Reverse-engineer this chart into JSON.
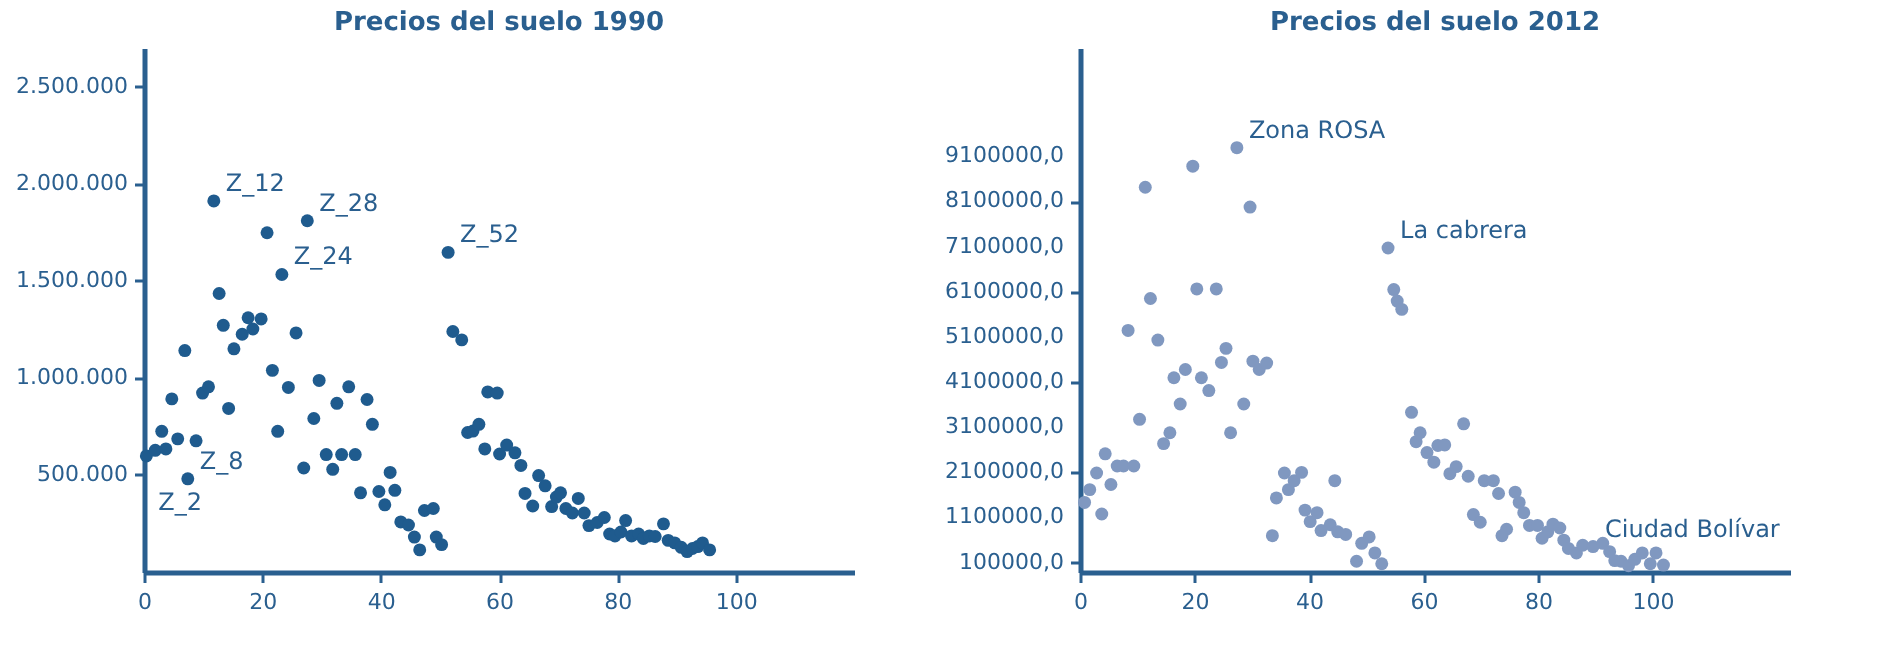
{
  "chart_data": [
    {
      "type": "scatter",
      "title": "Precios del suelo 1990",
      "marker": "circle",
      "grid": false,
      "x": [
        0.4,
        1.9,
        3.0,
        3.7,
        4.7,
        5.7,
        6.9,
        7.4,
        8.8,
        9.9,
        10.9,
        11.8,
        12.7,
        13.4,
        14.3,
        15.2,
        16.6,
        17.6,
        18.4,
        19.8,
        20.8,
        21.7,
        22.6,
        23.3,
        24.4,
        25.7,
        27.0,
        27.6,
        28.7,
        29.6,
        30.8,
        31.9,
        32.6,
        33.4,
        34.6,
        35.7,
        36.6,
        37.7,
        38.6,
        39.7,
        40.7,
        41.6,
        42.4,
        43.4,
        44.7,
        45.7,
        46.6,
        47.4,
        48.9,
        49.4,
        50.3,
        51.4,
        52.2,
        53.7,
        54.7,
        55.6,
        56.6,
        57.6,
        58.1,
        59.7,
        60.1,
        61.3,
        62.7,
        63.7,
        64.4,
        65.7,
        66.7,
        67.8,
        68.9,
        69.7,
        70.4,
        71.3,
        72.4,
        73.4,
        74.4,
        75.2,
        76.6,
        77.8,
        78.7,
        79.6,
        80.6,
        81.4,
        82.4,
        83.6,
        84.4,
        85.4,
        86.4,
        87.8,
        88.6,
        89.7,
        90.8,
        91.8,
        92.7,
        93.6,
        94.4,
        95.6
      ],
      "series": [
        {
          "color": "#1f5b8e",
          "values": [
            598000,
            627000,
            725000,
            634000,
            892000,
            686000,
            1141000,
            480000,
            676000,
            922000,
            954000,
            1912000,
            1435000,
            1271000,
            843000,
            1150000,
            1225000,
            1310000,
            1252000,
            1304000,
            1748000,
            1039000,
            725000,
            1533000,
            951000,
            1232000,
            536000,
            1810000,
            791000,
            987000,
            605000,
            529000,
            869000,
            605000,
            954000,
            605000,
            408000,
            889000,
            761000,
            415000,
            346000,
            513000,
            421000,
            258000,
            242000,
            180000,
            114000,
            317000,
            327000,
            180000,
            141000,
            1647000,
            1239000,
            1196000,
            719000,
            726000,
            761000,
            634000,
            928000,
            922000,
            608000,
            654000,
            614000,
            549000,
            405000,
            340000,
            497000,
            444000,
            337000,
            386000,
            408000,
            327000,
            304000,
            379000,
            304000,
            239000,
            255000,
            281000,
            196000,
            186000,
            206000,
            265000,
            186000,
            196000,
            173000,
            186000,
            183000,
            248000,
            163000,
            150000,
            127000,
            105000,
            121000,
            131000,
            150000,
            114000
          ]
        }
      ],
      "xlim": [
        0,
        120
      ],
      "xticks": [
        0,
        20,
        40,
        60,
        80,
        100
      ],
      "ylim": [
        0,
        2700000
      ],
      "yticks": [
        {
          "value": 500000,
          "label": "500.000"
        },
        {
          "value": 1000000,
          "label": "1.000.000"
        },
        {
          "value": 1500000,
          "label": "1.500.000"
        },
        {
          "value": 2000000,
          "label": "2.000.000"
        },
        {
          "value": 2500000,
          "label": "2.500.000"
        }
      ],
      "annotations": [
        {
          "text": "Z_12",
          "x": 11.8,
          "y": 1912000
        },
        {
          "text": "Z_28",
          "x": 27.6,
          "y": 1810000
        },
        {
          "text": "Z_24",
          "x": 23.3,
          "y": 1533000
        },
        {
          "text": "Z_52",
          "x": 51.4,
          "y": 1647000
        },
        {
          "text": "Z_8",
          "x": 7.4,
          "y": 480000
        },
        {
          "text": "Z_2",
          "x": 0.4,
          "y": 598000
        }
      ]
    },
    {
      "type": "scatter",
      "title": "Precios del suelo 2012",
      "marker": "circle",
      "grid": false,
      "x": [
        0.8,
        1.7,
        2.9,
        3.8,
        4.4,
        5.4,
        6.5,
        7.6,
        8.4,
        9.4,
        10.4,
        11.4,
        12.3,
        13.6,
        14.6,
        15.7,
        16.4,
        17.5,
        18.4,
        19.7,
        20.4,
        21.2,
        22.5,
        23.8,
        24.7,
        25.5,
        26.3,
        27.4,
        28.6,
        29.7,
        30.2,
        31.3,
        32.6,
        33.6,
        34.3,
        35.7,
        36.4,
        37.4,
        38.7,
        39.3,
        40.2,
        41.4,
        42.1,
        43.7,
        44.5,
        45.0,
        46.4,
        48.3,
        49.2,
        50.5,
        51.5,
        52.7,
        53.8,
        54.8,
        55.4,
        56.2,
        57.9,
        58.7,
        59.4,
        60.6,
        61.8,
        62.5,
        63.7,
        64.6,
        65.7,
        67.0,
        67.8,
        68.7,
        69.9,
        70.6,
        72.2,
        73.1,
        73.7,
        74.5,
        76.0,
        76.7,
        77.5,
        78.5,
        79.9,
        80.7,
        81.7,
        82.6,
        83.8,
        84.5,
        85.3,
        86.7,
        87.8,
        89.6,
        91.3,
        92.5,
        93.4,
        94.5,
        95.8,
        96.9,
        98.2,
        99.6,
        100.6,
        101.9
      ],
      "series": [
        {
          "color": "#8098c0",
          "values": [
            1431000,
            1715000,
            2083000,
            1176000,
            2508000,
            1828000,
            2239000,
            2239000,
            5242000,
            2239000,
            3273000,
            8414000,
            5950000,
            5029000,
            2734000,
            2975000,
            4193000,
            3612000,
            4377000,
            8882000,
            6162000,
            4193000,
            3910000,
            6162000,
            4533000,
            4845000,
            2975000,
            9292000,
            3612000,
            7975000,
            4562000,
            4377000,
            4519000,
            695000,
            1531000,
            2083000,
            1715000,
            1913000,
            2097000,
            1261000,
            1006000,
            1205000,
            808000,
            936000,
            1913000,
            780000,
            723000,
            128000,
            525000,
            667000,
            312000,
            72000,
            7069000,
            6148000,
            5893000,
            5709000,
            3428000,
            2777000,
            2975000,
            2536000,
            2324000,
            2692000,
            2706000,
            2069000,
            2225000,
            3173000,
            2012000,
            1162000,
            992000,
            1913000,
            1913000,
            1630000,
            695000,
            837000,
            1658000,
            1431000,
            1205000,
            922000,
            922000,
            638000,
            780000,
            950000,
            865000,
            596000,
            412000,
            312000,
            482000,
            454000,
            525000,
            341000,
            142000,
            128000,
            29000,
            171000,
            312000,
            72000,
            312000,
            43000
          ]
        }
      ],
      "xlim": [
        0,
        124
      ],
      "xticks": [
        0,
        20,
        40,
        60,
        80,
        100
      ],
      "ylim": [
        -110000,
        11500000
      ],
      "yticks": [
        {
          "value": 100000,
          "label": "100000,0"
        },
        {
          "value": 1100000,
          "label": "1100000,0"
        },
        {
          "value": 2100000,
          "label": "2100000,0"
        },
        {
          "value": 3100000,
          "label": "3100000,0"
        },
        {
          "value": 4100000,
          "label": "4100000,0"
        },
        {
          "value": 5100000,
          "label": "5100000,0"
        },
        {
          "value": 6100000,
          "label": "6100000,0"
        },
        {
          "value": 7100000,
          "label": "7100000,0"
        },
        {
          "value": 8100000,
          "label": "8100000,0"
        },
        {
          "value": 9100000,
          "label": "9100000,0"
        }
      ],
      "annotations": [
        {
          "text": "Zona ROSA",
          "x": 27.4,
          "y": 9292000
        },
        {
          "text": "La cabrera",
          "x": 53.8,
          "y": 7069000
        },
        {
          "text": "Ciudad Bolívar",
          "x": 89.6,
          "y": 454000
        }
      ]
    }
  ]
}
